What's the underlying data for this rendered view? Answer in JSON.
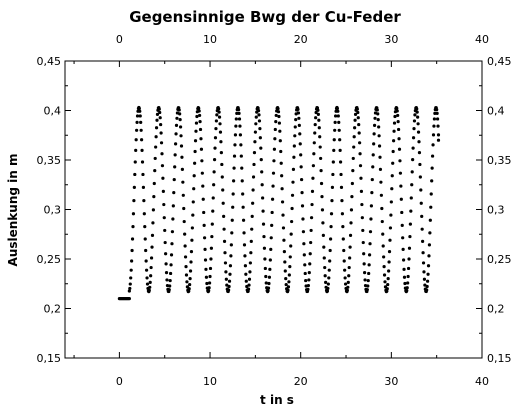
{
  "chart_data": {
    "type": "scatter",
    "title": "Gegensinnige Bwg der Cu-Feder",
    "xlabel": "t in s",
    "ylabel": "Auslenkung in m",
    "xlim": [
      -6,
      40
    ],
    "ylim": [
      0.15,
      0.45
    ],
    "x_ticks": [
      {
        "value": 0,
        "label": "0"
      },
      {
        "value": 10,
        "label": "10"
      },
      {
        "value": 20,
        "label": "20"
      },
      {
        "value": 30,
        "label": "30"
      },
      {
        "value": 40,
        "label": "40"
      }
    ],
    "y_ticks": [
      {
        "value": 0.15,
        "label": "0,15"
      },
      {
        "value": 0.2,
        "label": "0,2"
      },
      {
        "value": 0.25,
        "label": "0,25"
      },
      {
        "value": 0.3,
        "label": "0,3"
      },
      {
        "value": 0.35,
        "label": "0,35"
      },
      {
        "value": 0.4,
        "label": "0,4"
      },
      {
        "value": 0.45,
        "label": "0,45"
      }
    ],
    "grid": false,
    "mirror_ticks_top_right": true,
    "marker_color": "#000000",
    "series": [
      {
        "rest_segment": {
          "t_start": 0.0,
          "t_end": 1.1,
          "y": 0.21,
          "t_step": 0.1
        },
        "oscillation": {
          "t_start": 1.1,
          "t_end": 35.2,
          "t_step": 0.05,
          "center": 0.31,
          "amplitude": 0.093,
          "first_peak_t": 2.15,
          "period": 2.185,
          "end_value": 0.37
        }
      }
    ]
  }
}
